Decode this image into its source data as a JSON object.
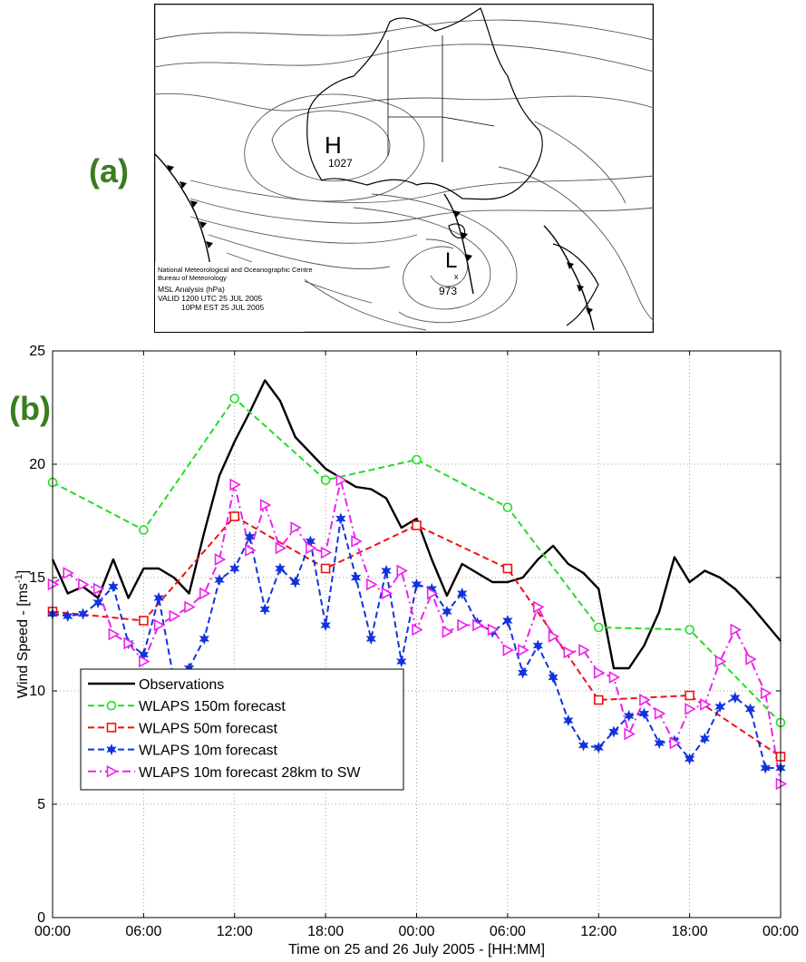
{
  "panel_labels": {
    "a": "(a)",
    "b": "(b)"
  },
  "map": {
    "high_label": "H",
    "high_value": "1027",
    "low_label": "L",
    "low_value": "973",
    "caption": [
      "National Meteorological and Oceanographic Centre",
      "Bureau of Meteorology",
      "MSL Analysis (hPa)",
      "VALID 1200 UTC 25 JUL 2005",
      "10PM EST 25 JUL 2005"
    ]
  },
  "chart_data": {
    "type": "line",
    "xlabel": "Time on 25 and 26 July 2005 - [HH:MM]",
    "ylabel": "Wind Speed - [ms",
    "ylabel_sup": "-1",
    "ylabel_end": "]",
    "x_ticks": [
      "00:00",
      "06:00",
      "12:00",
      "18:00",
      "00:00",
      "06:00",
      "12:00",
      "18:00",
      "00:00"
    ],
    "x_range_hours": [
      0,
      48
    ],
    "y_ticks": [
      0,
      5,
      10,
      15,
      20,
      25
    ],
    "ylim": [
      0,
      25
    ],
    "grid": true,
    "legend_position": "bottom-left",
    "series": [
      {
        "name": "Observations",
        "color": "#000000",
        "style": "solid",
        "marker": "none",
        "x": [
          0,
          1,
          2,
          3,
          4,
          5,
          6,
          7,
          8,
          9,
          10,
          11,
          12,
          13,
          14,
          15,
          16,
          17,
          18,
          19,
          20,
          21,
          22,
          23,
          24,
          25,
          26,
          27,
          28,
          29,
          30,
          31,
          32,
          33,
          34,
          35,
          36,
          37,
          38,
          39,
          40,
          41,
          42,
          43,
          44,
          45,
          46,
          47,
          48
        ],
        "y": [
          15.8,
          14.3,
          14.6,
          14.1,
          15.8,
          14.1,
          15.4,
          15.4,
          15.0,
          14.3,
          17.0,
          19.5,
          21.0,
          22.3,
          23.7,
          22.8,
          21.2,
          20.5,
          19.8,
          19.4,
          19.0,
          18.9,
          18.5,
          17.2,
          17.6,
          15.8,
          14.2,
          15.6,
          15.2,
          14.8,
          14.8,
          15.0,
          15.8,
          16.4,
          15.6,
          15.2,
          14.5,
          11.0,
          11.0,
          12.0,
          13.5,
          15.9,
          14.8,
          15.3,
          15.0,
          14.5,
          13.8,
          13.0,
          12.2
        ]
      },
      {
        "name": "WLAPS 150m forecast",
        "color": "#22dd22",
        "style": "dashed",
        "marker": "circle",
        "x": [
          0,
          6,
          12,
          18,
          24,
          30,
          36,
          42,
          48
        ],
        "y": [
          19.2,
          17.1,
          22.9,
          19.3,
          20.2,
          18.1,
          12.8,
          12.7,
          8.6
        ]
      },
      {
        "name": "WLAPS 50m forecast",
        "color": "#ee1111",
        "style": "dashed",
        "marker": "square",
        "x": [
          0,
          6,
          12,
          18,
          24,
          30,
          36,
          42,
          48
        ],
        "y": [
          13.5,
          13.1,
          17.7,
          15.4,
          17.3,
          15.4,
          9.6,
          9.8,
          7.1
        ]
      },
      {
        "name": "WLAPS 10m forecast",
        "color": "#1133dd",
        "style": "dashed",
        "marker": "star",
        "x": [
          0,
          1,
          2,
          3,
          4,
          5,
          6,
          7,
          8,
          9,
          10,
          11,
          12,
          13,
          14,
          15,
          16,
          17,
          18,
          19,
          20,
          21,
          22,
          23,
          24,
          25,
          26,
          27,
          28,
          29,
          30,
          31,
          32,
          33,
          34,
          35,
          36,
          37,
          38,
          39,
          40,
          41,
          42,
          43,
          44,
          45,
          46,
          47,
          48
        ],
        "y": [
          13.4,
          13.3,
          13.4,
          13.9,
          14.6,
          12.1,
          11.6,
          14.1,
          10.5,
          11.0,
          12.3,
          14.9,
          15.4,
          16.8,
          13.6,
          15.4,
          14.8,
          16.6,
          12.9,
          17.6,
          15.0,
          12.3,
          15.3,
          11.3,
          14.7,
          14.5,
          13.5,
          14.3,
          13.0,
          12.6,
          13.1,
          10.8,
          12.0,
          10.6,
          8.7,
          7.6,
          7.5,
          8.2,
          8.9,
          9.0,
          7.7,
          7.8,
          7.0,
          7.9,
          9.3,
          9.7,
          9.2,
          6.6,
          6.6
        ]
      },
      {
        "name": "WLAPS 10m forecast 28km to SW",
        "color": "#ee22ee",
        "style": "dashdot",
        "marker": "triangle-right",
        "x": [
          0,
          1,
          2,
          3,
          4,
          5,
          6,
          7,
          8,
          9,
          10,
          11,
          12,
          13,
          14,
          15,
          16,
          17,
          18,
          19,
          20,
          21,
          22,
          23,
          24,
          25,
          26,
          27,
          28,
          29,
          30,
          31,
          32,
          33,
          34,
          35,
          36,
          37,
          38,
          39,
          40,
          41,
          42,
          43,
          44,
          45,
          46,
          47,
          48
        ],
        "y": [
          14.7,
          15.2,
          14.7,
          14.5,
          12.5,
          12.1,
          11.3,
          12.9,
          13.3,
          13.7,
          14.3,
          15.8,
          19.1,
          16.2,
          18.2,
          16.3,
          17.2,
          16.3,
          16.1,
          19.3,
          16.6,
          14.7,
          14.3,
          15.3,
          12.7,
          14.3,
          12.6,
          12.9,
          12.9,
          12.7,
          11.8,
          11.8,
          13.7,
          12.4,
          11.7,
          11.8,
          10.8,
          10.6,
          8.1,
          9.6,
          9.0,
          7.7,
          9.2,
          9.4,
          11.3,
          12.7,
          11.4,
          9.9,
          5.9
        ]
      }
    ]
  }
}
